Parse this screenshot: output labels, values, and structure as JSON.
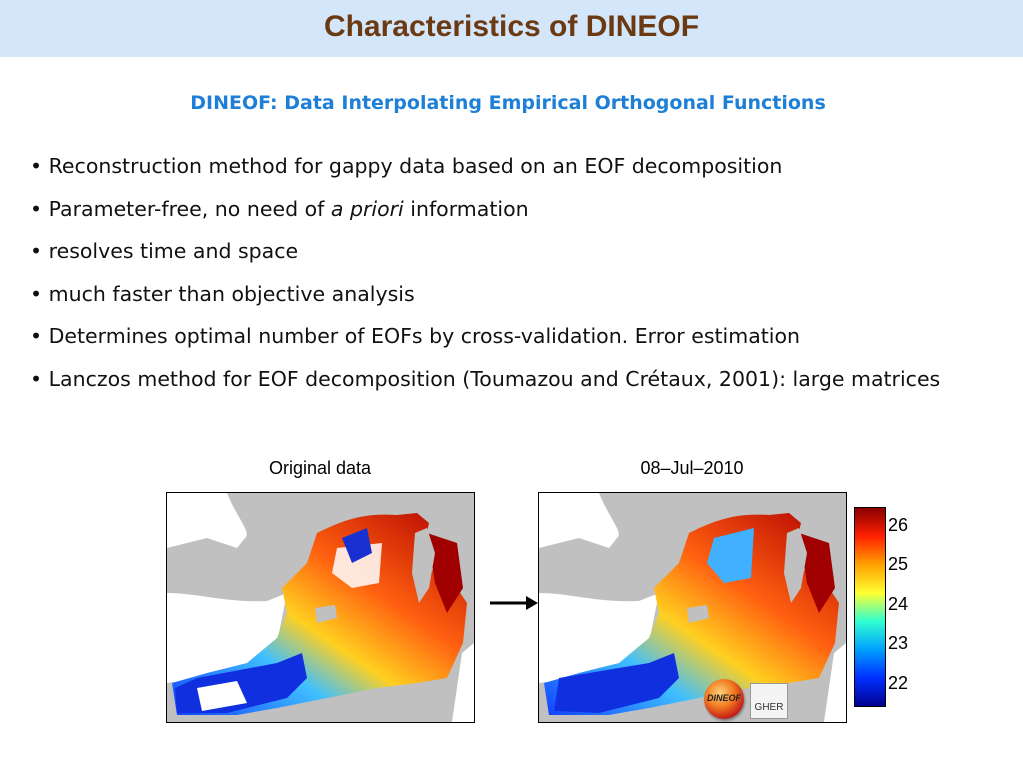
{
  "header": {
    "title": "Characteristics of DINEOF"
  },
  "subtitle": "DINEOF: Data Interpolating Empirical Orthogonal Functions",
  "bullets": [
    {
      "text": "• Reconstruction method for gappy data based on an EOF decomposition"
    },
    {
      "before": "• Parameter-free, no need of ",
      "italic": "a priori",
      "after": " information"
    },
    {
      "text": "• resolves time and space"
    },
    {
      "text": "• much faster than objective analysis"
    },
    {
      "text": "• Determines optimal number of EOFs by cross-validation. Error estimation"
    },
    {
      "text": "• Lanczos method for EOF decomposition (Toumazou and Crétaux, 2001): large matrices"
    }
  ],
  "figure": {
    "left_caption": "Original data",
    "right_caption": "08–Jul–2010",
    "colorbar_ticks": [
      "26",
      "25",
      "24",
      "23",
      "22"
    ],
    "colorbar_colors": [
      "#8b0000",
      "#ff2000",
      "#ffa000",
      "#ffff30",
      "#30ffd0",
      "#00a0ff",
      "#0030ff",
      "#000090"
    ],
    "logo_dineof": "DINEOF",
    "logo_gher": "GHER"
  }
}
